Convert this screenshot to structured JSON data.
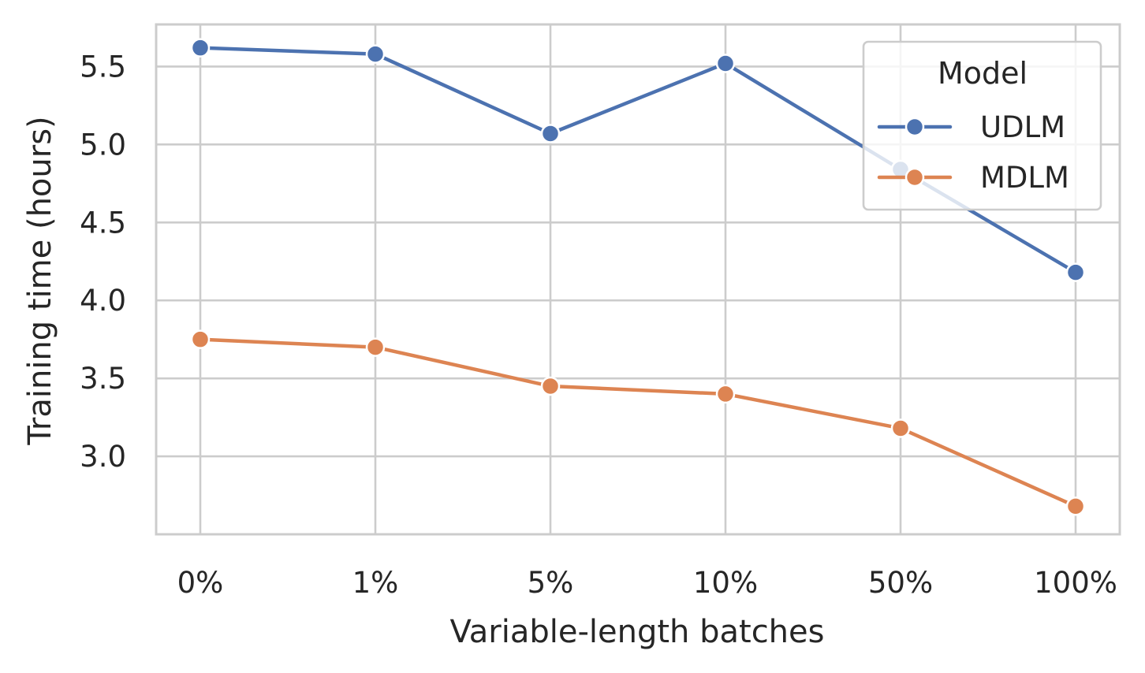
{
  "chart_data": {
    "type": "line",
    "title": "",
    "xlabel": "Variable-length batches",
    "ylabel": "Training time (hours)",
    "categories": [
      "0%",
      "1%",
      "5%",
      "10%",
      "50%",
      "100%"
    ],
    "ylim": [
      2.5,
      5.77
    ],
    "yticks": [
      3.0,
      3.5,
      4.0,
      4.5,
      5.0,
      5.5
    ],
    "ytick_labels": [
      "3.0",
      "3.5",
      "4.0",
      "4.5",
      "5.0",
      "5.5"
    ],
    "grid": true,
    "legend": {
      "title": "Model",
      "placement": "top-right"
    },
    "series": [
      {
        "name": "UDLM",
        "color": "#4c72b0",
        "marker": "circle",
        "values": [
          5.62,
          5.58,
          5.07,
          5.52,
          4.84,
          4.18
        ]
      },
      {
        "name": "MDLM",
        "color": "#dd8452",
        "marker": "circle",
        "values": [
          3.75,
          3.7,
          3.45,
          3.4,
          3.18,
          2.68
        ]
      }
    ]
  }
}
